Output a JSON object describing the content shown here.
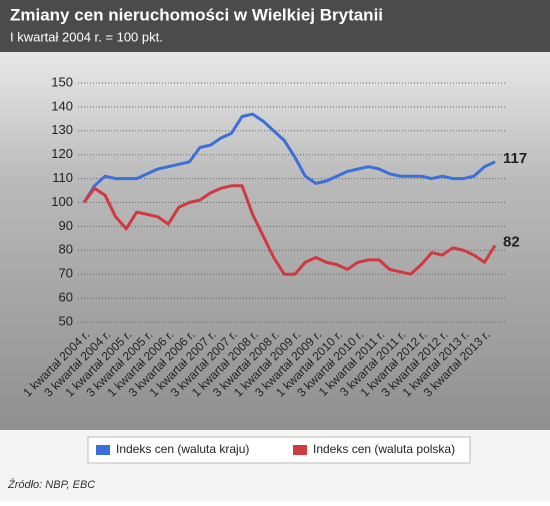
{
  "chart_data": {
    "type": "line",
    "title": "Zmiany cen nieruchomości w Wielkiej Brytanii",
    "subtitle": "I kwartał 2004 r. = 100 pkt.",
    "source": "Źródło: NBP, EBC",
    "categories": [
      "1 kwartał 2004 r.",
      null,
      "3 kwartał 2004 r.",
      null,
      "1 kwartał 2005 r.",
      null,
      "3 kwartał 2005 r.",
      null,
      "1 kwartał 2006 r.",
      null,
      "3 kwartał 2006 r.",
      null,
      "1 kwartał 2007 r.",
      null,
      "3 kwartał 2007 r.",
      null,
      "1 kwartał 2008 r.",
      null,
      "3 kwartał 2008 r.",
      null,
      "1 kwartał 2009 r.",
      null,
      "3 kwartał 2009 r.",
      null,
      "1 kwartał 2010 r.",
      null,
      "3 kwartał 2010 r.",
      null,
      "1 kwartał 2011 r.",
      null,
      "3 kwartał 2011 r.",
      null,
      "1 kwartał 2012 r.",
      null,
      "3 kwartał 2012 r.",
      null,
      "1 kwartał 2013 r.",
      null,
      "3 kwartał 2013 r.",
      null
    ],
    "series": [
      {
        "name": "Indeks cen (waluta kraju)",
        "color": "#3b6fd9",
        "values": [
          100,
          107,
          111,
          110,
          110,
          110,
          112,
          114,
          115,
          116,
          117,
          123,
          124,
          127,
          129,
          136,
          137,
          134,
          130,
          126,
          119,
          111,
          108,
          109,
          111,
          113,
          114,
          115,
          114,
          112,
          111,
          111,
          111,
          110,
          111,
          110,
          110,
          111,
          115,
          117
        ]
      },
      {
        "name": "Indeks cen (waluta polska)",
        "color": "#d0393f",
        "values": [
          100,
          106,
          103,
          94,
          89,
          96,
          95,
          94,
          91,
          98,
          100,
          101,
          104,
          106,
          107,
          107,
          95,
          86,
          77,
          70,
          70,
          75,
          77,
          75,
          74,
          72,
          75,
          76,
          76,
          72,
          71,
          70,
          74,
          79,
          78,
          81,
          80,
          78,
          75,
          82
        ]
      }
    ],
    "ylim": [
      50,
      150
    ],
    "yticks": [
      50,
      60,
      70,
      80,
      90,
      100,
      110,
      120,
      130,
      140,
      150
    ],
    "grid": true
  }
}
